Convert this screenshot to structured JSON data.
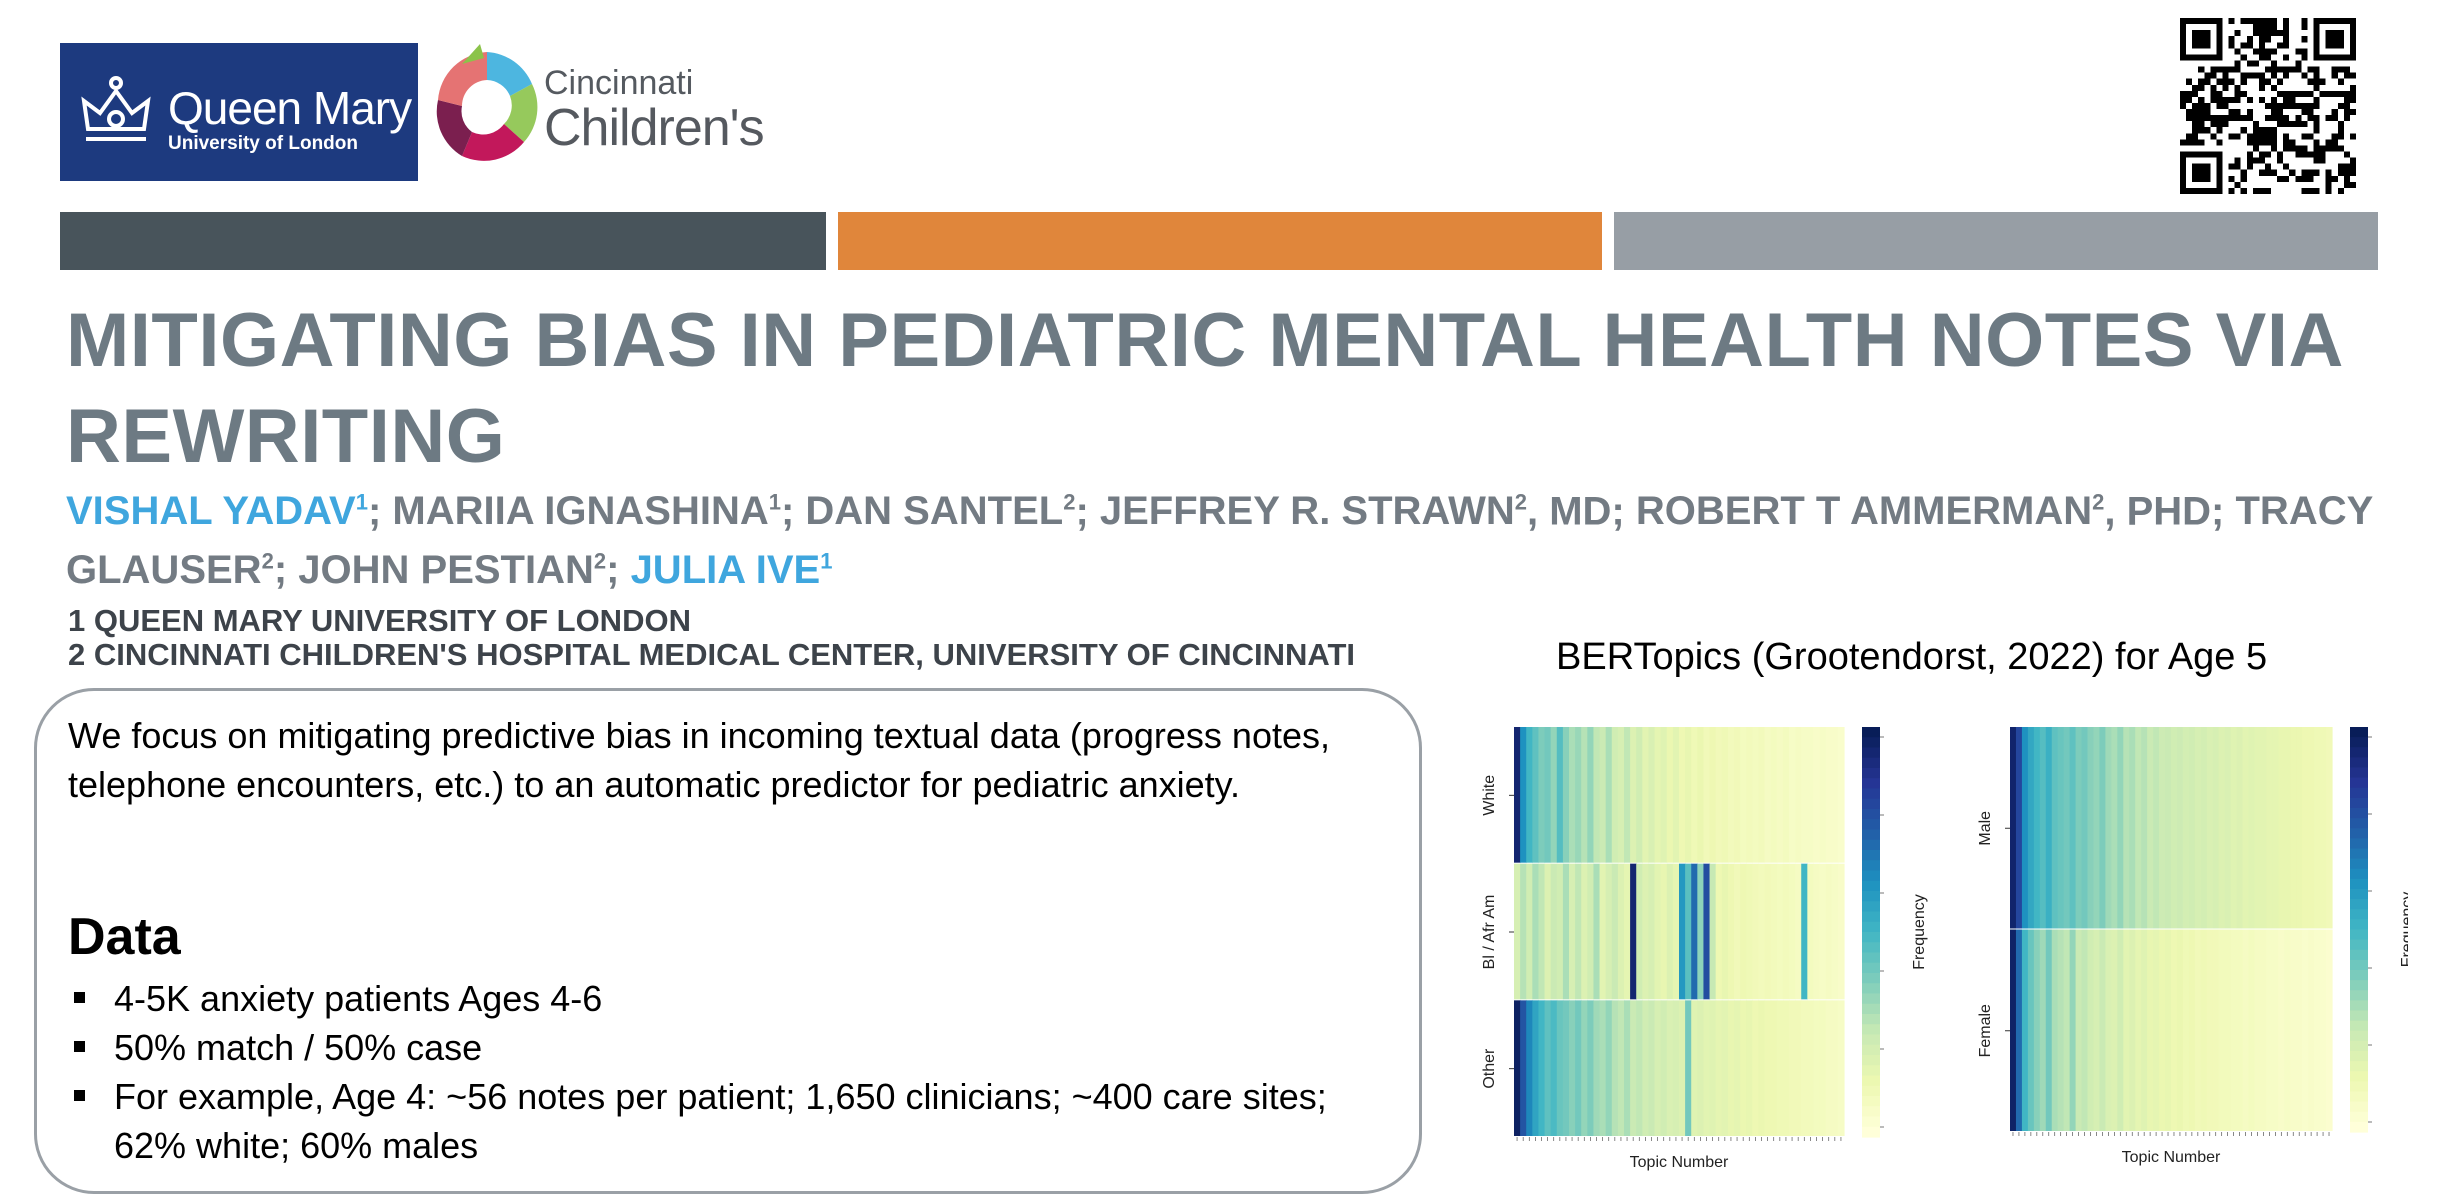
{
  "logos": {
    "qm_name": "Queen Mary",
    "qm_sub": "University of London",
    "cc_word1": "Cincinnati",
    "cc_word2": "Children's"
  },
  "title": "MITIGATING BIAS IN PEDIATRIC MENTAL HEALTH NOTES VIA REWRITING",
  "authors": [
    {
      "name": "VISHAL YADAV",
      "sup": "1",
      "after": "; ",
      "highlight": true
    },
    {
      "name": "MARIIA IGNASHINA",
      "sup": "1",
      "after": "; ",
      "highlight": false
    },
    {
      "name": "DAN SANTEL",
      "sup": "2",
      "after": ";  ",
      "highlight": false
    },
    {
      "name": "JEFFREY R. STRAWN",
      "sup": "2",
      "after": ", MD; ",
      "highlight": false
    },
    {
      "name": "ROBERT T AMMERMAN",
      "sup": "2",
      "after": ", PHD; ",
      "highlight": false
    },
    {
      "name": "TRACY GLAUSER",
      "sup": "2",
      "after": "; ",
      "highlight": false
    },
    {
      "name": "JOHN PESTIAN",
      "sup": "2",
      "after": ";  ",
      "highlight": false
    },
    {
      "name": "JULIA IVE",
      "sup": "1",
      "after": "",
      "highlight": true
    }
  ],
  "affiliations": [
    "1 QUEEN MARY UNIVERSITY OF LONDON",
    "2 CINCINNATI CHILDREN'S HOSPITAL MEDICAL CENTER, UNIVERSITY OF CINCINNATI"
  ],
  "intro": "We focus on mitigating predictive bias in incoming textual data (progress notes, telephone encounters, etc.) to an automatic predictor for pediatric anxiety.",
  "data_section": {
    "heading": "Data",
    "items": [
      "4-5K anxiety patients Ages 4-6",
      "50% match / 50% case",
      "For example,  Age 4: ~56 notes per patient; 1,650 clinicians; ~400 care sites; 62% white; 60% males"
    ]
  },
  "bertopics_title": "BERTopics (Grootendorst, 2022) for Age 5",
  "chart_data": [
    {
      "type": "heatmap",
      "title": "",
      "xlabel": "Topic Number",
      "colorbar_label": "Frequency",
      "rows": [
        "White",
        "Bl / Afr Am",
        "Other"
      ],
      "colormap": "YlGnBu",
      "values": [
        [
          0.95,
          0.62,
          0.5,
          0.44,
          0.38,
          0.4,
          0.34,
          0.46,
          0.36,
          0.3,
          0.33,
          0.28,
          0.34,
          0.26,
          0.24,
          0.3,
          0.22,
          0.2,
          0.26,
          0.18,
          0.22,
          0.16,
          0.19,
          0.15,
          0.17,
          0.13,
          0.16,
          0.12,
          0.14,
          0.11,
          0.13,
          0.1,
          0.12,
          0.1,
          0.11,
          0.09,
          0.1,
          0.08,
          0.09,
          0.08,
          0.09,
          0.07,
          0.08,
          0.07,
          0.08,
          0.06,
          0.07,
          0.06,
          0.06,
          0.05,
          0.06,
          0.05,
          0.05,
          0.04
        ],
        [
          0.2,
          0.28,
          0.22,
          0.3,
          0.26,
          0.18,
          0.24,
          0.22,
          0.3,
          0.2,
          0.26,
          0.18,
          0.22,
          0.3,
          0.16,
          0.2,
          0.24,
          0.18,
          0.15,
          0.95,
          0.22,
          0.18,
          0.2,
          0.16,
          0.14,
          0.18,
          0.15,
          0.6,
          0.45,
          0.72,
          0.35,
          0.8,
          0.25,
          0.12,
          0.14,
          0.12,
          0.1,
          0.12,
          0.11,
          0.1,
          0.09,
          0.1,
          0.09,
          0.08,
          0.09,
          0.08,
          0.07,
          0.5,
          0.08,
          0.07,
          0.06,
          0.07,
          0.06,
          0.05
        ],
        [
          0.98,
          0.78,
          0.65,
          0.56,
          0.5,
          0.44,
          0.48,
          0.42,
          0.4,
          0.36,
          0.4,
          0.34,
          0.38,
          0.32,
          0.3,
          0.34,
          0.28,
          0.26,
          0.3,
          0.24,
          0.26,
          0.22,
          0.24,
          0.2,
          0.22,
          0.19,
          0.2,
          0.18,
          0.4,
          0.17,
          0.18,
          0.16,
          0.17,
          0.15,
          0.16,
          0.14,
          0.15,
          0.13,
          0.14,
          0.12,
          0.13,
          0.12,
          0.12,
          0.11,
          0.11,
          0.1,
          0.1,
          0.09,
          0.09,
          0.08,
          0.08,
          0.07,
          0.07,
          0.06
        ]
      ]
    },
    {
      "type": "heatmap",
      "title": "",
      "xlabel": "Topic Number",
      "colorbar_label": "Frequency",
      "rows": [
        "Male",
        "Female"
      ],
      "colormap": "YlGnBu",
      "values": [
        [
          0.96,
          0.82,
          0.62,
          0.55,
          0.5,
          0.46,
          0.52,
          0.44,
          0.42,
          0.4,
          0.44,
          0.38,
          0.4,
          0.36,
          0.34,
          0.38,
          0.32,
          0.3,
          0.34,
          0.28,
          0.3,
          0.26,
          0.28,
          0.24,
          0.26,
          0.23,
          0.24,
          0.22,
          0.23,
          0.21,
          0.22,
          0.2,
          0.21,
          0.19,
          0.2,
          0.18,
          0.19,
          0.17,
          0.18,
          0.16,
          0.17,
          0.16,
          0.16,
          0.15,
          0.15,
          0.14,
          0.14,
          0.13,
          0.13,
          0.12,
          0.12,
          0.11,
          0.11,
          0.1
        ],
        [
          0.97,
          0.72,
          0.5,
          0.42,
          0.36,
          0.32,
          0.4,
          0.3,
          0.28,
          0.26,
          0.34,
          0.24,
          0.26,
          0.22,
          0.2,
          0.24,
          0.19,
          0.18,
          0.22,
          0.16,
          0.18,
          0.15,
          0.17,
          0.14,
          0.15,
          0.13,
          0.14,
          0.12,
          0.13,
          0.11,
          0.12,
          0.1,
          0.11,
          0.1,
          0.1,
          0.09,
          0.09,
          0.08,
          0.08,
          0.07,
          0.08,
          0.07,
          0.07,
          0.06,
          0.06,
          0.05,
          0.06,
          0.05,
          0.05,
          0.04,
          0.05,
          0.04,
          0.04,
          0.03
        ]
      ]
    }
  ]
}
